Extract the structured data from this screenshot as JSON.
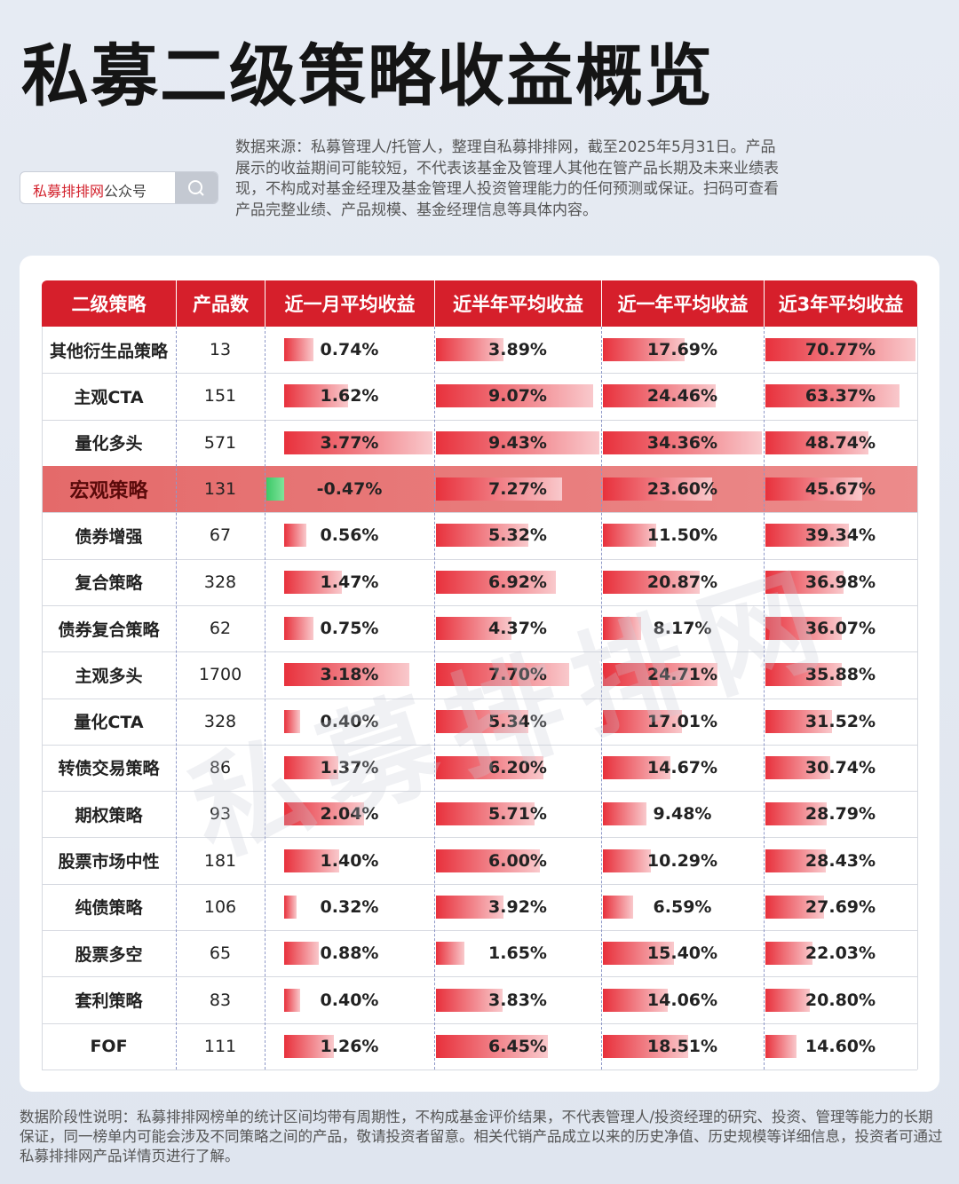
{
  "title": "私募二级策略收益概览",
  "search": {
    "brand": "私募排排网",
    "suffix": "公众号"
  },
  "source": "数据来源：私募管理人/托管人，整理自私募排排网，截至2025年5月31日。产品展示的收益期间可能较短，不代表该基金及管理人其他在管产品长期及未来业绩表现，不构成对基金经理及基金管理人投资管理能力的任何预测或保证。扫码可查看产品完整业绩、产品规模、基金经理信息等具体内容。",
  "watermark": "私募排排网",
  "table": {
    "headers": [
      "二级策略",
      "产品数",
      "近一月平均收益",
      "近半年平均收益",
      "近一年平均收益",
      "近3年平均收益"
    ],
    "highlight": 3,
    "rows": [
      [
        "其他衍生品策略",
        13,
        "0.74%",
        "3.89%",
        "17.69%",
        "70.77%"
      ],
      [
        "主观CTA",
        151,
        "1.62%",
        "9.07%",
        "24.46%",
        "63.37%"
      ],
      [
        "量化多头",
        571,
        "3.77%",
        "9.43%",
        "34.36%",
        "48.74%"
      ],
      [
        "宏观策略",
        131,
        "-0.47%",
        "7.27%",
        "23.60%",
        "45.67%"
      ],
      [
        "债券增强",
        67,
        "0.56%",
        "5.32%",
        "11.50%",
        "39.34%"
      ],
      [
        "复合策略",
        328,
        "1.47%",
        "6.92%",
        "20.87%",
        "36.98%"
      ],
      [
        "债券复合策略",
        62,
        "0.75%",
        "4.37%",
        "8.17%",
        "36.07%"
      ],
      [
        "主观多头",
        1700,
        "3.18%",
        "7.70%",
        "24.71%",
        "35.88%"
      ],
      [
        "量化CTA",
        328,
        "0.40%",
        "5.34%",
        "17.01%",
        "31.52%"
      ],
      [
        "转债交易策略",
        86,
        "1.37%",
        "6.20%",
        "14.67%",
        "30.74%"
      ],
      [
        "期权策略",
        93,
        "2.04%",
        "5.71%",
        "9.48%",
        "28.79%"
      ],
      [
        "股票市场中性",
        181,
        "1.40%",
        "6.00%",
        "10.29%",
        "28.43%"
      ],
      [
        "纯债策略",
        106,
        "0.32%",
        "3.92%",
        "6.59%",
        "27.69%"
      ],
      [
        "股票多空",
        65,
        "0.88%",
        "1.65%",
        "15.40%",
        "22.03%"
      ],
      [
        "套利策略",
        83,
        "0.40%",
        "3.83%",
        "14.06%",
        "20.80%"
      ],
      [
        "FOF",
        111,
        "1.26%",
        "6.45%",
        "18.51%",
        "14.60%"
      ]
    ]
  },
  "footer": "数据阶段性说明：私募排排网榜单的统计区间均带有周期性，不构成基金评价结果，不代表管理人/投资经理的研究、投资、管理等能力的长期保证，同一榜单内可能会涉及不同策略之间的产品，敬请投资者留意。相关代销产品成立以来的历史净值、历史规模等详细信息，投资者可通过私募排排网产品详情页进行了解。"
}
